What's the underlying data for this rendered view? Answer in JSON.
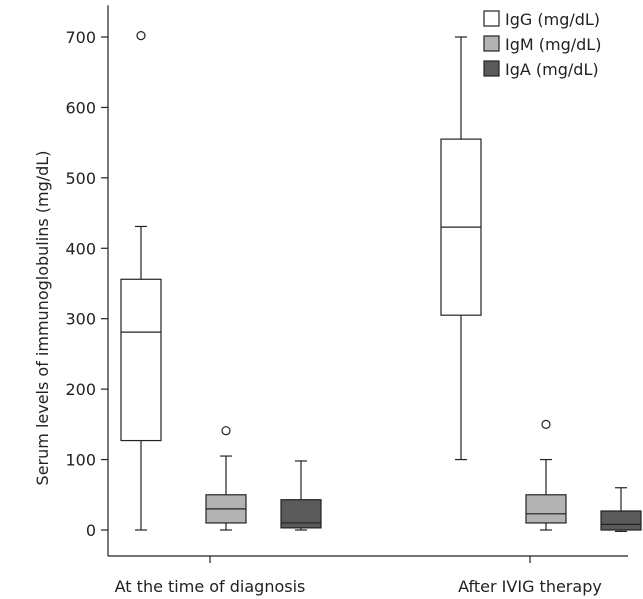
{
  "chart_data": {
    "type": "box",
    "ylabel": "Serum levels of immunoglobulins (mg/dL)",
    "ylim": [
      -40,
      745
    ],
    "yticks": [
      0,
      100,
      200,
      300,
      400,
      500,
      600,
      700
    ],
    "yticks_text": [
      "0",
      "100",
      "200",
      "300",
      "400",
      "500",
      "600",
      "700"
    ],
    "grid": false,
    "legend_position": "top-right",
    "categories": [
      "At the time of diagnosis",
      "After IVIG therapy"
    ],
    "series": [
      {
        "name": "IgG (mg/dL)",
        "color": "#ffffff",
        "boxes": [
          {
            "min": 0,
            "q1": 127,
            "median": 281,
            "q3": 356,
            "max": 431,
            "outliers": [
              702
            ]
          },
          {
            "min": 100,
            "q1": 305,
            "median": 430,
            "q3": 555,
            "max": 700,
            "outliers": []
          }
        ]
      },
      {
        "name": "IgM (mg/dL)",
        "color": "#b3b3b3",
        "boxes": [
          {
            "min": 0,
            "q1": 10,
            "median": 30,
            "q3": 50,
            "max": 105,
            "outliers": [
              141
            ]
          },
          {
            "min": 0,
            "q1": 10,
            "median": 23,
            "q3": 50,
            "max": 100,
            "outliers": [
              150
            ]
          }
        ]
      },
      {
        "name": "IgA (mg/dL)",
        "color": "#5a5a5a",
        "boxes": [
          {
            "min": 0,
            "q1": 3,
            "median": 10,
            "q3": 43,
            "max": 98,
            "outliers": []
          },
          {
            "min": -2,
            "q1": 0,
            "median": 8,
            "q3": 27,
            "max": 60,
            "outliers": []
          }
        ]
      }
    ]
  }
}
